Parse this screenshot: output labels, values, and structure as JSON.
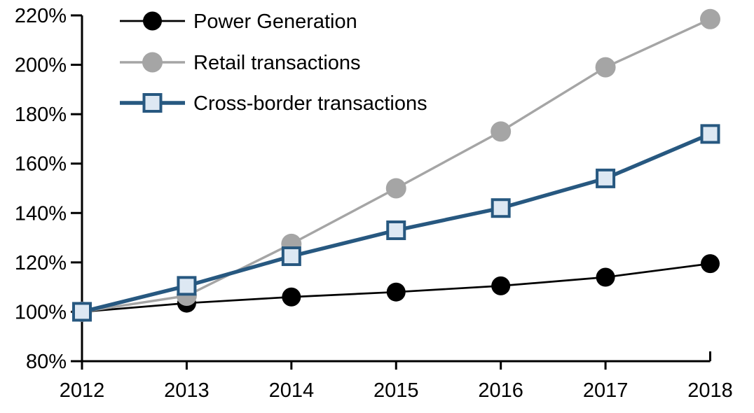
{
  "chart_data": {
    "type": "line",
    "title": "",
    "xlabel": "",
    "ylabel": "",
    "x": [
      2012,
      2013,
      2014,
      2015,
      2016,
      2017,
      2018
    ],
    "xtick_labels": [
      "2012",
      "2013",
      "2014",
      "2015",
      "2016",
      "2017",
      "2018"
    ],
    "ylim": [
      80,
      220
    ],
    "ytick_step": 20,
    "ytick_labels": [
      "80%",
      "100%",
      "120%",
      "140%",
      "160%",
      "180%",
      "200%",
      "220%"
    ],
    "grid": false,
    "legend_position": "top-left-inside",
    "axis_color": "#000000",
    "series": [
      {
        "name": "Power Generation",
        "color": "#000000",
        "marker": "circle",
        "marker_fill": "#000000",
        "values": [
          100,
          103.5,
          106,
          108,
          110.5,
          114,
          119.5
        ]
      },
      {
        "name": "Retail transactions",
        "color": "#A5A5A5",
        "marker": "circle",
        "marker_fill": "#A5A5A5",
        "values": [
          100,
          106.5,
          127.5,
          150,
          173,
          199,
          218.5
        ]
      },
      {
        "name": "Cross-border transactions",
        "color": "#275880",
        "marker": "square",
        "marker_fill": "#DDE8F3",
        "values": [
          100,
          110.5,
          122.5,
          133,
          142,
          154,
          172
        ]
      }
    ]
  }
}
